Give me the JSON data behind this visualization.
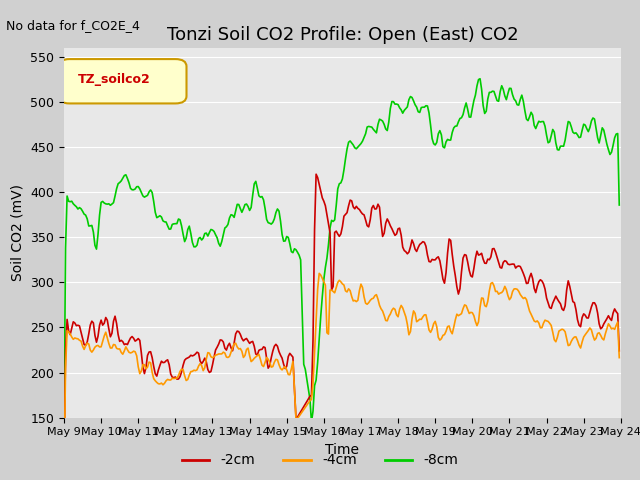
{
  "title": "Tonzi Soil CO2 Profile: Open (East) CO2",
  "subtitle": "No data for f_CO2E_4",
  "ylabel": "Soil CO2 (mV)",
  "xlabel": "Time",
  "ylim": [
    150,
    560
  ],
  "yticks": [
    150,
    200,
    250,
    300,
    350,
    400,
    450,
    500,
    550
  ],
  "xlim": [
    0,
    360
  ],
  "legend_labels": [
    "-2cm",
    "-4cm",
    "-8cm"
  ],
  "legend_colors": [
    "#cc0000",
    "#ff9900",
    "#00cc00"
  ],
  "line_colors": [
    "#cc0000",
    "#ff9900",
    "#00cc00"
  ],
  "bg_color": "#e8e8e8",
  "legend_box_color": "#ffffcc",
  "legend_box_edge": "#cc9900",
  "legend_title": "TZ_soilco2",
  "title_fontsize": 13,
  "label_fontsize": 10,
  "tick_fontsize": 9,
  "x_tick_labels": [
    "May 9",
    "May 10",
    "May 11",
    "May 12",
    "May 13",
    "May 14",
    "May 15",
    "May 16",
    "May 17",
    "May 18",
    "May 19",
    "May 20",
    "May 21",
    "May 22",
    "May 23",
    "May 24"
  ],
  "x_tick_positions": [
    0,
    24,
    48,
    72,
    96,
    120,
    144,
    168,
    192,
    216,
    240,
    264,
    288,
    312,
    336,
    360
  ]
}
